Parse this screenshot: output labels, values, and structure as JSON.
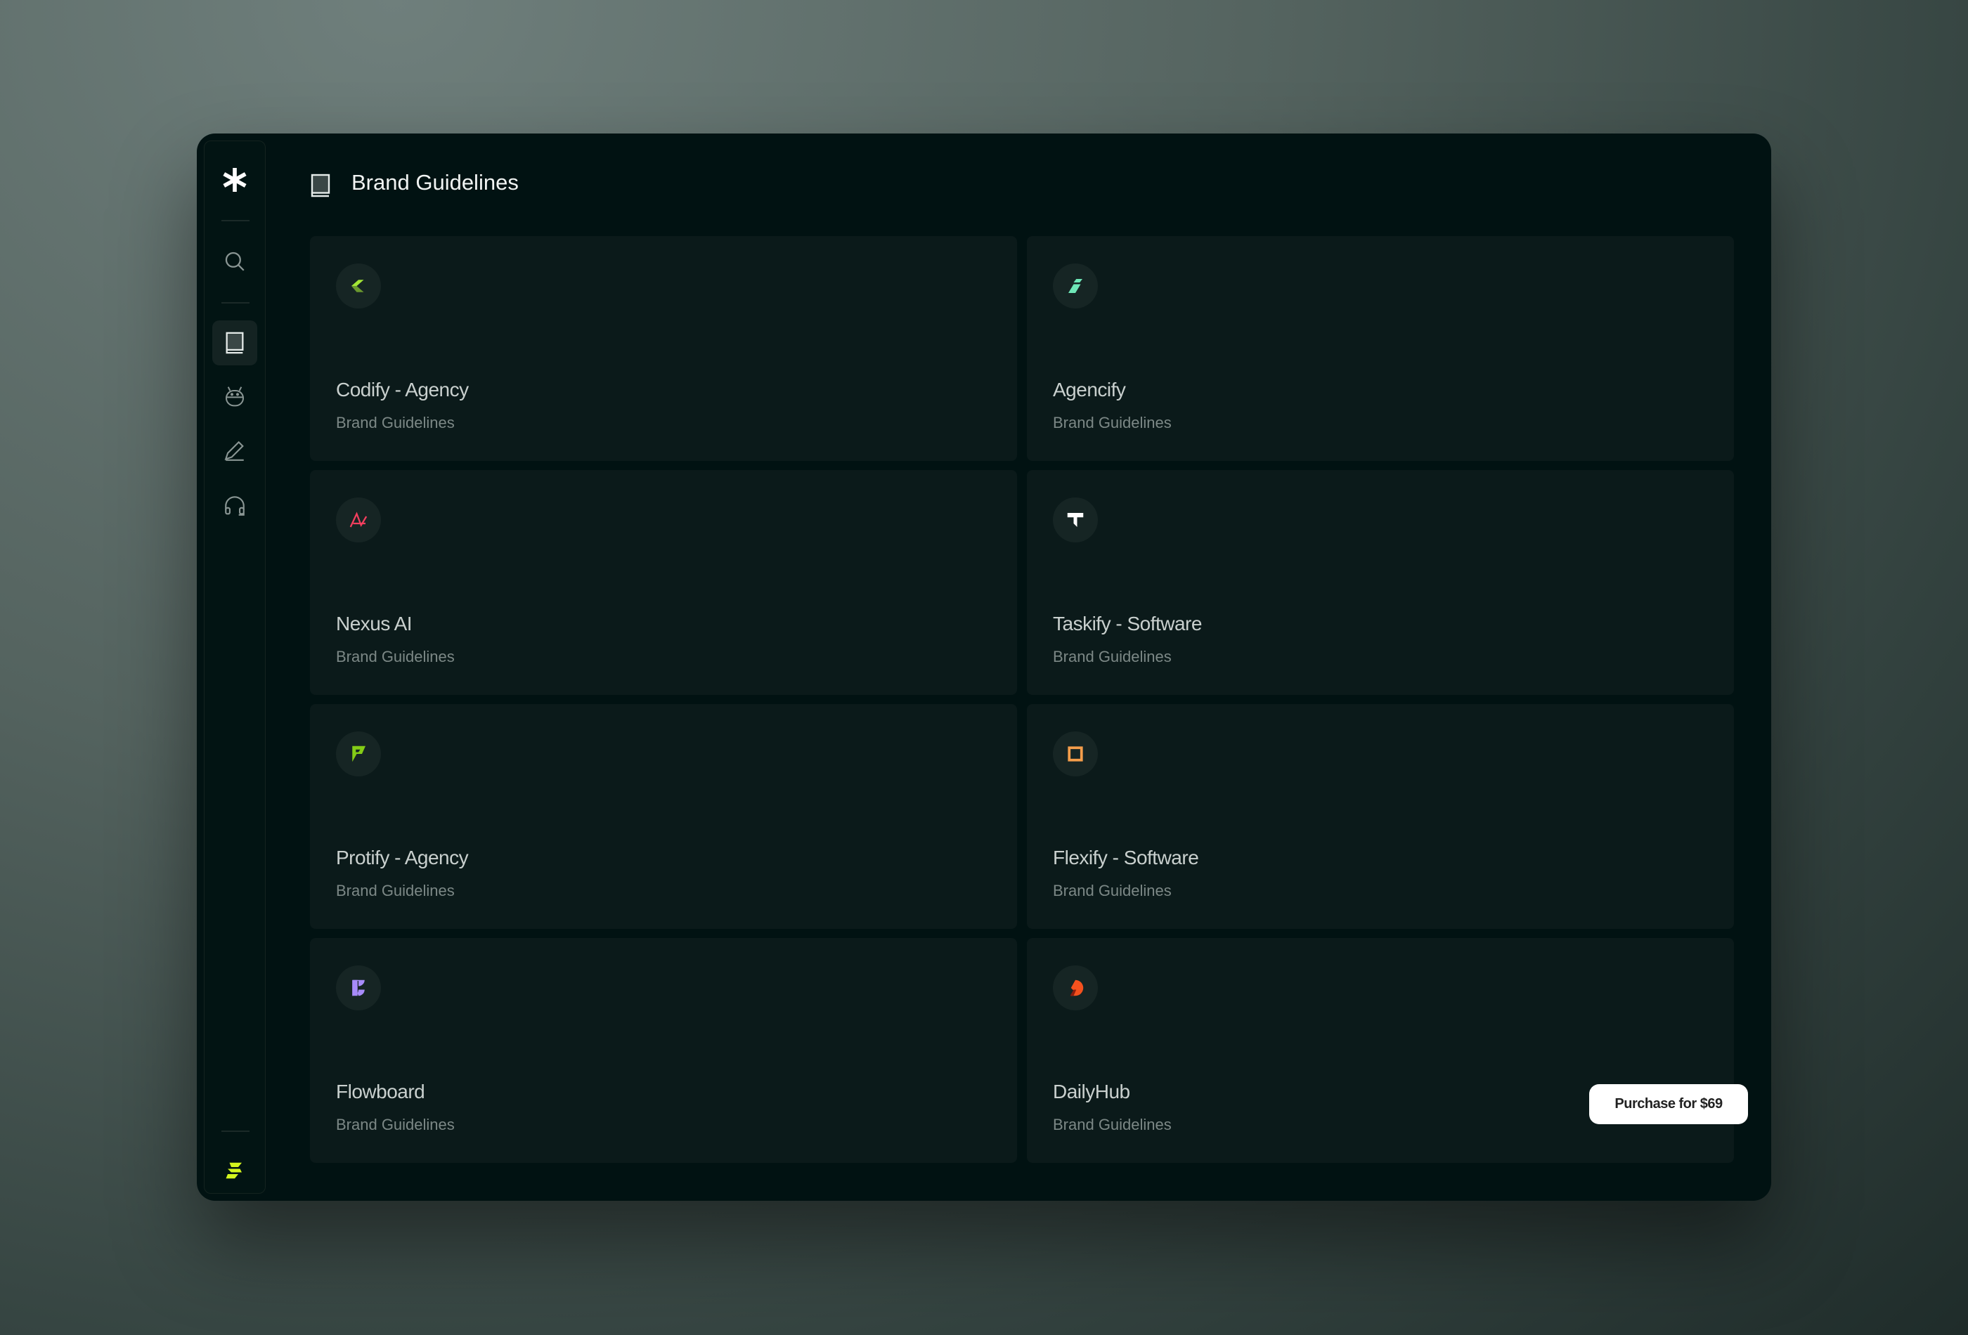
{
  "header": {
    "title": "Brand Guidelines",
    "icon": "book-icon"
  },
  "sidebar": {
    "items": [
      {
        "name": "logo",
        "icon": "asterisk-icon"
      },
      {
        "name": "search",
        "icon": "search-icon"
      },
      {
        "name": "brand-guidelines",
        "icon": "book-icon",
        "active": true
      },
      {
        "name": "bot",
        "icon": "robot-icon"
      },
      {
        "name": "edit",
        "icon": "pencil-icon"
      },
      {
        "name": "support",
        "icon": "headset-icon"
      },
      {
        "name": "brand-logo",
        "icon": "s-logo-icon"
      }
    ]
  },
  "cards": [
    {
      "title": "Codify - Agency",
      "subtitle": "Brand Guidelines",
      "color": "#a3e635"
    },
    {
      "title": "Agencify",
      "subtitle": "Brand Guidelines",
      "color": "#6ee7b7"
    },
    {
      "title": "Nexus AI",
      "subtitle": "Brand Guidelines",
      "color": "#f43f5e"
    },
    {
      "title": "Taskify - Software",
      "subtitle": "Brand Guidelines",
      "color": "#ffffff"
    },
    {
      "title": "Protify - Agency",
      "subtitle": "Brand Guidelines",
      "color": "#84cc16"
    },
    {
      "title": "Flexify - Software",
      "subtitle": "Brand Guidelines",
      "color": "#f59e4b"
    },
    {
      "title": "Flowboard",
      "subtitle": "Brand Guidelines",
      "color": "#a78bfa"
    },
    {
      "title": "DailyHub",
      "subtitle": "Brand Guidelines",
      "color": "#f4511e"
    }
  ],
  "purchase": {
    "label": "Purchase for $69"
  }
}
